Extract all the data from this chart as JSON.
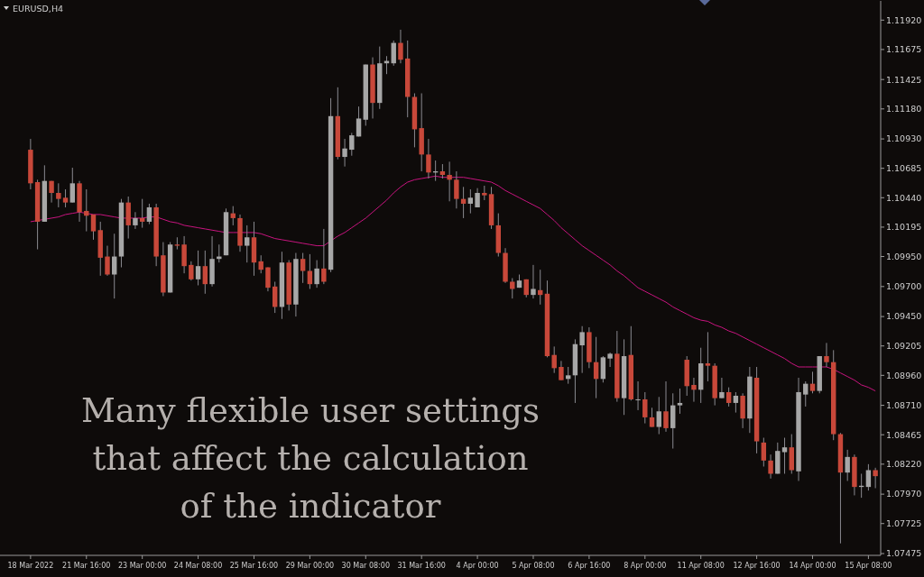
{
  "chart_data": {
    "type": "candlestick",
    "title": "EURUSD,H4",
    "categories": [
      "18 Mar 2022",
      null,
      null,
      null,
      null,
      null,
      null,
      null,
      "21 Mar 16:00",
      null,
      null,
      null,
      null,
      null,
      null,
      null,
      "23 Mar 00:00",
      null,
      null,
      null,
      null,
      null,
      null,
      null,
      "24 Mar 08:00",
      null,
      null,
      null,
      null,
      null,
      null,
      null,
      "25 Mar 16:00",
      null,
      null,
      null,
      null,
      null,
      null,
      null,
      "29 Mar 00:00",
      null,
      null,
      null,
      null,
      null,
      null,
      null,
      "30 Mar 08:00",
      null,
      null,
      null,
      null,
      null,
      null,
      null,
      "31 Mar 16:00",
      null,
      null,
      null,
      null,
      null,
      null,
      null,
      "4 Apr 00:00",
      null,
      null,
      null,
      null,
      null,
      null,
      null,
      "5 Apr 08:00",
      null,
      null,
      null,
      null,
      null,
      null,
      null,
      "6 Apr 16:00",
      null,
      null,
      null,
      null,
      null,
      null,
      null,
      "8 Apr 00:00",
      null,
      null,
      null,
      null,
      null,
      null,
      null,
      "11 Apr 08:00",
      null,
      null,
      null,
      null,
      null,
      null,
      null,
      "12 Apr 16:00",
      null,
      null,
      null,
      null,
      null,
      null,
      null,
      "14 Apr 00:00",
      null,
      null,
      null,
      null,
      null,
      null,
      null,
      "15 Apr 08:00",
      null
    ],
    "ohlc": [
      [
        1.1084,
        1.1093,
        1.1051,
        1.1056
      ],
      [
        1.1057,
        1.1059,
        1.1001,
        1.1024
      ],
      [
        1.1024,
        1.1071,
        1.1024,
        1.1058
      ],
      [
        1.1058,
        1.1058,
        1.104,
        1.1048
      ],
      [
        1.1048,
        1.1056,
        1.1036,
        1.1043
      ],
      [
        1.1044,
        1.1051,
        1.1036,
        1.104
      ],
      [
        1.104,
        1.1069,
        1.104,
        1.1056
      ],
      [
        1.1056,
        1.1058,
        1.1024,
        1.1032
      ],
      [
        1.1033,
        1.1051,
        1.1016,
        1.1029
      ],
      [
        1.103,
        1.103,
        1.1009,
        1.1016
      ],
      [
        1.1017,
        1.1024,
        1.0979,
        1.0994
      ],
      [
        1.0995,
        1.1004,
        1.0979,
        1.098
      ],
      [
        1.098,
        1.1014,
        1.096,
        1.0995
      ],
      [
        1.0995,
        1.1043,
        1.0986,
        1.104
      ],
      [
        1.104,
        1.1045,
        1.101,
        1.1021
      ],
      [
        1.1021,
        1.1032,
        1.1018,
        1.1027
      ],
      [
        1.1027,
        1.1043,
        1.1019,
        1.1024
      ],
      [
        1.1024,
        1.1039,
        1.1022,
        1.1036
      ],
      [
        1.1036,
        1.1039,
        1.0987,
        1.0995
      ],
      [
        1.0996,
        1.1007,
        1.0962,
        1.0965
      ],
      [
        1.0965,
        1.1007,
        1.0965,
        1.1005
      ],
      [
        1.1005,
        1.1011,
        1.1001,
        1.1004
      ],
      [
        1.1005,
        1.1012,
        1.0981,
        1.0987
      ],
      [
        1.0988,
        1.0991,
        1.0975,
        1.0976
      ],
      [
        1.0976,
        1.1,
        1.0971,
        1.0987
      ],
      [
        1.0987,
        1.1,
        1.0964,
        1.0972
      ],
      [
        1.0972,
        1.1012,
        1.097,
        1.0993
      ],
      [
        1.0993,
        1.1005,
        1.099,
        1.0995
      ],
      [
        1.0996,
        1.1035,
        1.0996,
        1.1032
      ],
      [
        1.1031,
        1.1037,
        1.1021,
        1.1027
      ],
      [
        1.1027,
        1.103,
        1.0999,
        1.1004
      ],
      [
        1.1004,
        1.1021,
        1.099,
        1.1011
      ],
      [
        1.1011,
        1.1024,
        1.0979,
        1.099
      ],
      [
        1.0991,
        1.0996,
        1.0981,
        1.0984
      ],
      [
        1.0986,
        1.0986,
        1.0966,
        1.0969
      ],
      [
        1.097,
        1.0974,
        1.0948,
        1.0953
      ],
      [
        1.0953,
        1.0999,
        1.0943,
        1.099
      ],
      [
        1.099,
        1.0992,
        1.095,
        1.0955
      ],
      [
        1.0955,
        1.0998,
        1.0945,
        1.0993
      ],
      [
        1.0993,
        1.0998,
        1.0973,
        1.0983
      ],
      [
        1.0983,
        1.0997,
        1.0968,
        1.0972
      ],
      [
        1.0972,
        1.0992,
        1.0969,
        1.0985
      ],
      [
        1.0985,
        1.1018,
        1.0972,
        1.0974
      ],
      [
        1.0984,
        1.1127,
        1.0982,
        1.1112
      ],
      [
        1.1112,
        1.1136,
        1.1076,
        1.1078
      ],
      [
        1.1078,
        1.1093,
        1.107,
        1.1085
      ],
      [
        1.1084,
        1.1098,
        1.1079,
        1.1096
      ],
      [
        1.1095,
        1.112,
        1.1095,
        1.111
      ],
      [
        1.1109,
        1.1155,
        1.1104,
        1.1155
      ],
      [
        1.1155,
        1.1161,
        1.111,
        1.1123
      ],
      [
        1.1123,
        1.117,
        1.1118,
        1.1156
      ],
      [
        1.1156,
        1.1162,
        1.1147,
        1.1158
      ],
      [
        1.1156,
        1.1175,
        1.1154,
        1.1173
      ],
      [
        1.1173,
        1.1184,
        1.1156,
        1.1159
      ],
      [
        1.116,
        1.1175,
        1.1111,
        1.1128
      ],
      [
        1.1128,
        1.1131,
        1.1086,
        1.1101
      ],
      [
        1.1102,
        1.1131,
        1.1066,
        1.108
      ],
      [
        1.108,
        1.1093,
        1.106,
        1.1065
      ],
      [
        1.1065,
        1.1075,
        1.1058,
        1.1066
      ],
      [
        1.1066,
        1.1072,
        1.106,
        1.1063
      ],
      [
        1.1063,
        1.1074,
        1.1041,
        1.1059
      ],
      [
        1.1059,
        1.1066,
        1.1035,
        1.1043
      ],
      [
        1.1043,
        1.1053,
        1.1027,
        1.1039
      ],
      [
        1.1039,
        1.1051,
        1.1031,
        1.1044
      ],
      [
        1.1036,
        1.1052,
        1.1036,
        1.1048
      ],
      [
        1.1048,
        1.1054,
        1.1042,
        1.1046
      ],
      [
        1.1047,
        1.1053,
        1.1018,
        1.1021
      ],
      [
        1.1021,
        1.1031,
        1.0995,
        1.0998
      ],
      [
        1.0998,
        1.1002,
        1.0973,
        1.0974
      ],
      [
        1.0974,
        1.0977,
        1.096,
        1.0968
      ],
      [
        1.0969,
        1.098,
        1.0969,
        1.0975
      ],
      [
        1.0976,
        1.0976,
        1.0961,
        1.0963
      ],
      [
        1.0963,
        1.0988,
        1.096,
        1.0968
      ],
      [
        1.0967,
        1.0984,
        1.0955,
        1.0963
      ],
      [
        1.0964,
        1.0975,
        1.0911,
        1.0912
      ],
      [
        1.0913,
        1.092,
        1.0898,
        1.0902
      ],
      [
        1.0903,
        1.0908,
        1.0892,
        1.0892
      ],
      [
        1.0893,
        1.0903,
        1.0889,
        1.0896
      ],
      [
        1.0896,
        1.0926,
        1.0873,
        1.0922
      ],
      [
        1.0921,
        1.0937,
        1.0898,
        1.0932
      ],
      [
        1.0932,
        1.0936,
        1.0902,
        1.0907
      ],
      [
        1.0907,
        1.0928,
        1.0877,
        1.0893
      ],
      [
        1.0893,
        1.0912,
        1.089,
        1.0911
      ],
      [
        1.091,
        1.0915,
        1.0903,
        1.0914
      ],
      [
        1.0914,
        1.0933,
        1.0874,
        1.0877
      ],
      [
        1.0877,
        1.0926,
        1.0863,
        1.0912
      ],
      [
        1.0913,
        1.0937,
        1.0875,
        1.0876
      ],
      [
        1.0876,
        1.0891,
        1.0867,
        1.0876
      ],
      [
        1.0876,
        1.0882,
        1.0856,
        1.0861
      ],
      [
        1.0861,
        1.0869,
        1.0853,
        1.0853
      ],
      [
        1.0853,
        1.0878,
        1.0847,
        1.0866
      ],
      [
        1.0866,
        1.0891,
        1.0849,
        1.0852
      ],
      [
        1.0852,
        1.0881,
        1.0835,
        1.0871
      ],
      [
        1.0871,
        1.0885,
        1.0864,
        1.0873
      ],
      [
        1.0909,
        1.0912,
        1.0879,
        1.0887
      ],
      [
        1.0888,
        1.0894,
        1.0874,
        1.0884
      ],
      [
        1.0884,
        1.0919,
        1.0873,
        1.0906
      ],
      [
        1.0906,
        1.0932,
        1.0891,
        1.0904
      ],
      [
        1.0904,
        1.0906,
        1.0871,
        1.0877
      ],
      [
        1.0877,
        1.0894,
        1.0877,
        1.0882
      ],
      [
        1.0882,
        1.0886,
        1.087,
        1.0873
      ],
      [
        1.0873,
        1.0882,
        1.0865,
        1.0879
      ],
      [
        1.0879,
        1.0881,
        1.0852,
        1.086
      ],
      [
        1.086,
        1.0903,
        1.0848,
        1.0895
      ],
      [
        1.0894,
        1.0903,
        1.0831,
        1.0841
      ],
      [
        1.084,
        1.0844,
        1.082,
        1.0825
      ],
      [
        1.0825,
        1.083,
        1.081,
        1.0814
      ],
      [
        1.0814,
        1.084,
        1.0814,
        1.0833
      ],
      [
        1.0832,
        1.0844,
        1.0814,
        1.0836
      ],
      [
        1.0836,
        1.0847,
        1.0814,
        1.0817
      ],
      [
        1.0816,
        1.0894,
        1.0808,
        1.0882
      ],
      [
        1.088,
        1.0891,
        1.087,
        1.0889
      ],
      [
        1.0889,
        1.0899,
        1.0881,
        1.0883
      ],
      [
        1.0883,
        1.0912,
        1.0881,
        1.0912
      ],
      [
        1.0912,
        1.0923,
        1.0903,
        1.0907
      ],
      [
        1.0907,
        1.0917,
        1.0842,
        1.0847
      ],
      [
        1.0847,
        1.0848,
        1.0756,
        1.0815
      ],
      [
        1.0815,
        1.0834,
        1.0808,
        1.0828
      ],
      [
        1.0828,
        1.083,
        1.0796,
        1.0803
      ],
      [
        1.0803,
        1.0814,
        1.0794,
        1.0804
      ],
      [
        1.0803,
        1.0822,
        1.08,
        1.0817
      ],
      [
        1.0817,
        1.0819,
        1.0802,
        1.0812
      ]
    ],
    "colors": [
      "#c8483a",
      "#c8483a",
      "#a7a7a7",
      "#c8483a",
      "#c8483a",
      "#c8483a",
      "#a7a7a7",
      "#c8483a",
      "#c8483a",
      "#c8483a",
      "#c8483a",
      "#c8483a",
      "#a7a7a7",
      "#a7a7a7",
      "#c8483a",
      "#a7a7a7",
      "#c8483a",
      "#a7a7a7",
      "#c8483a",
      "#c8483a",
      "#a7a7a7",
      "#c8483a",
      "#c8483a",
      "#c8483a",
      "#a7a7a7",
      "#c8483a",
      "#a7a7a7",
      "#a7a7a7",
      "#a7a7a7",
      "#c8483a",
      "#c8483a",
      "#a7a7a7",
      "#c8483a",
      "#c8483a",
      "#c8483a",
      "#c8483a",
      "#a7a7a7",
      "#c8483a",
      "#a7a7a7",
      "#c8483a",
      "#c8483a",
      "#a7a7a7",
      "#c8483a",
      "#a7a7a7",
      "#c8483a",
      "#a7a7a7",
      "#a7a7a7",
      "#a7a7a7",
      "#a7a7a7",
      "#c8483a",
      "#a7a7a7",
      "#a7a7a7",
      "#a7a7a7",
      "#c8483a",
      "#c8483a",
      "#c8483a",
      "#c8483a",
      "#c8483a",
      "#a7a7a7",
      "#c8483a",
      "#c8483a",
      "#c8483a",
      "#c8483a",
      "#a7a7a7",
      "#a7a7a7",
      "#c8483a",
      "#c8483a",
      "#c8483a",
      "#c8483a",
      "#c8483a",
      "#a7a7a7",
      "#c8483a",
      "#a7a7a7",
      "#c8483a",
      "#c8483a",
      "#c8483a",
      "#c8483a",
      "#a7a7a7",
      "#a7a7a7",
      "#a7a7a7",
      "#c8483a",
      "#c8483a",
      "#a7a7a7",
      "#a7a7a7",
      "#c8483a",
      "#a7a7a7",
      "#c8483a",
      "#a7a7a7",
      "#c8483a",
      "#c8483a",
      "#a7a7a7",
      "#c8483a",
      "#a7a7a7",
      "#a7a7a7",
      "#c8483a",
      "#c8483a",
      "#a7a7a7",
      "#c8483a",
      "#c8483a",
      "#a7a7a7",
      "#c8483a",
      "#a7a7a7",
      "#c8483a",
      "#a7a7a7",
      "#c8483a",
      "#c8483a",
      "#c8483a",
      "#a7a7a7",
      "#a7a7a7",
      "#c8483a",
      "#a7a7a7",
      "#a7a7a7",
      "#c8483a",
      "#a7a7a7",
      "#c8483a",
      "#c8483a",
      "#c8483a",
      "#a7a7a7",
      "#c8483a",
      "#a7a7a7",
      "#a7a7a7",
      "#c8483a"
    ],
    "series": [
      {
        "type": "line",
        "color": "#c8147f",
        "values": [
          1.1024,
          1.1025,
          1.1026,
          1.1027,
          1.1028,
          1.103,
          1.1031,
          1.1032,
          1.1031,
          1.103,
          1.103,
          1.1029,
          1.1028,
          1.1027,
          1.1027,
          1.1027,
          1.1027,
          1.1028,
          1.1028,
          1.1026,
          1.1024,
          1.1023,
          1.1021,
          1.102,
          1.1019,
          1.1018,
          1.1017,
          1.1016,
          1.1015,
          1.1015,
          1.1015,
          1.1015,
          1.1015,
          1.1014,
          1.1012,
          1.101,
          1.1009,
          1.1008,
          1.1007,
          1.1006,
          1.1005,
          1.1004,
          1.1004,
          1.1008,
          1.1012,
          1.1015,
          1.1019,
          1.1023,
          1.1027,
          1.1032,
          1.1037,
          1.1042,
          1.1048,
          1.1053,
          1.1057,
          1.1059,
          1.106,
          1.1061,
          1.1062,
          1.1061,
          1.1061,
          1.1061,
          1.1061,
          1.106,
          1.1059,
          1.1058,
          1.1057,
          1.1054,
          1.105,
          1.1047,
          1.1044,
          1.1041,
          1.1038,
          1.1035,
          1.103,
          1.1025,
          1.1019,
          1.1014,
          1.1009,
          1.1004,
          1.1,
          1.0996,
          1.0992,
          1.0988,
          1.0983,
          1.0979,
          1.0974,
          1.0969,
          1.0966,
          1.0963,
          1.096,
          1.0957,
          1.0953,
          1.095,
          1.0947,
          1.0944,
          1.0942,
          1.0941,
          1.0938,
          1.0936,
          1.0933,
          1.0931,
          1.0928,
          1.0925,
          1.0922,
          1.0919,
          1.0916,
          1.0913,
          1.091,
          1.0906,
          1.0903,
          1.0903,
          1.0903,
          1.0903,
          1.0903,
          1.0901,
          1.0898,
          1.0895,
          1.0892,
          1.0888,
          1.0886,
          1.0883
        ]
      }
    ],
    "ylim": [
      1.0746,
      1.1208
    ],
    "yticks": [
      {
        "value": 1.1192,
        "label": "1.11920"
      },
      {
        "value": 1.11675,
        "label": "1.11675"
      },
      {
        "value": 1.11425,
        "label": "1.11425"
      },
      {
        "value": 1.1118,
        "label": "1.11180"
      },
      {
        "value": 1.1093,
        "label": "1.10930"
      },
      {
        "value": 1.10685,
        "label": "1.10685"
      },
      {
        "value": 1.1044,
        "label": "1.10440"
      },
      {
        "value": 1.10195,
        "label": "1.10195"
      },
      {
        "value": 1.0995,
        "label": "1.09950"
      },
      {
        "value": 1.097,
        "label": "1.09700"
      },
      {
        "value": 1.0945,
        "label": "1.09450"
      },
      {
        "value": 1.09205,
        "label": "1.09205"
      },
      {
        "value": 1.0896,
        "label": "1.08960"
      },
      {
        "value": 1.0871,
        "label": "1.08710"
      },
      {
        "value": 1.08465,
        "label": "1.08465"
      },
      {
        "value": 1.0822,
        "label": "1.08220"
      },
      {
        "value": 1.0797,
        "label": "1.07970"
      },
      {
        "value": 1.07725,
        "label": "1.07725"
      },
      {
        "value": 1.07475,
        "label": "1.07475"
      }
    ],
    "annotations": [
      "Many flexible user settings that affect the calculation of the indicator"
    ]
  }
}
